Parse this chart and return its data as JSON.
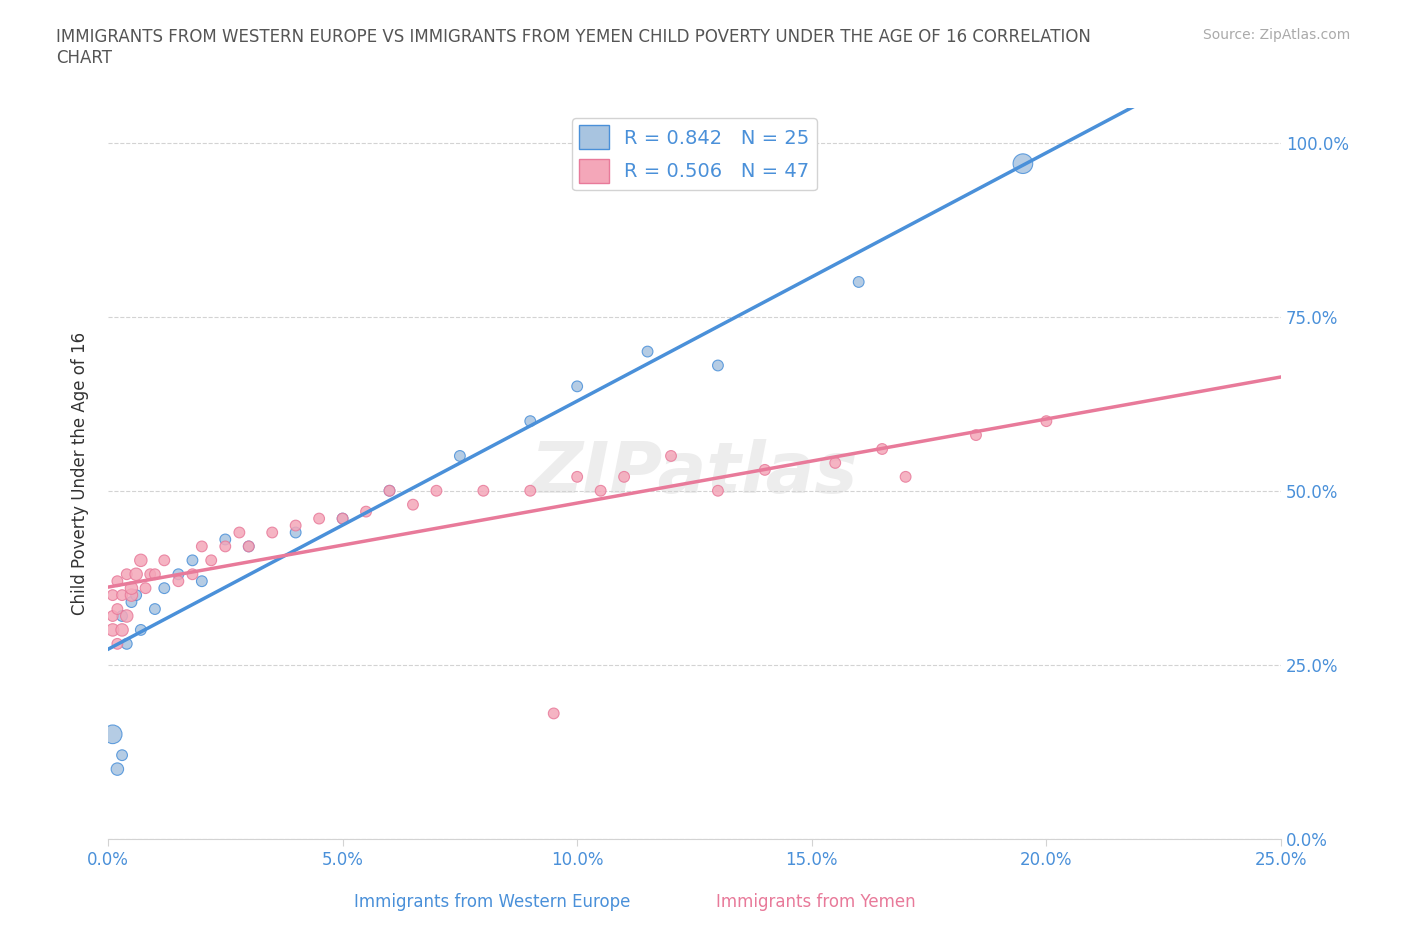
{
  "title": "IMMIGRANTS FROM WESTERN EUROPE VS IMMIGRANTS FROM YEMEN CHILD POVERTY UNDER THE AGE OF 16 CORRELATION\nCHART",
  "source": "Source: ZipAtlas.com",
  "xlabel_bottom": "Immigrants from Western Europe",
  "xlabel_bottom2": "Immigrants from Yemen",
  "ylabel": "Child Poverty Under the Age of 16",
  "xlim": [
    0,
    0.25
  ],
  "ylim": [
    0,
    1.05
  ],
  "xticks": [
    0.0,
    0.05,
    0.1,
    0.15,
    0.2,
    0.25
  ],
  "yticks": [
    0.0,
    0.25,
    0.5,
    0.75,
    1.0
  ],
  "blue_R": 0.842,
  "blue_N": 25,
  "pink_R": 0.506,
  "pink_N": 47,
  "blue_color": "#a8c4e0",
  "pink_color": "#f4a7b9",
  "blue_line_color": "#4a90d9",
  "pink_line_color": "#e87a9a",
  "watermark": "ZIPatlas",
  "blue_points_x": [
    0.001,
    0.002,
    0.003,
    0.003,
    0.004,
    0.005,
    0.006,
    0.007,
    0.01,
    0.012,
    0.015,
    0.018,
    0.02,
    0.025,
    0.03,
    0.04,
    0.05,
    0.06,
    0.075,
    0.09,
    0.1,
    0.115,
    0.13,
    0.16,
    0.195
  ],
  "blue_points_y": [
    0.15,
    0.1,
    0.12,
    0.32,
    0.28,
    0.34,
    0.35,
    0.3,
    0.33,
    0.36,
    0.38,
    0.4,
    0.37,
    0.43,
    0.42,
    0.44,
    0.46,
    0.5,
    0.55,
    0.6,
    0.65,
    0.7,
    0.68,
    0.8,
    0.97
  ],
  "blue_sizes": [
    180,
    80,
    60,
    60,
    60,
    60,
    60,
    60,
    60,
    60,
    60,
    60,
    60,
    60,
    60,
    60,
    60,
    60,
    60,
    60,
    60,
    60,
    60,
    60,
    200
  ],
  "pink_points_x": [
    0.001,
    0.001,
    0.001,
    0.002,
    0.002,
    0.002,
    0.003,
    0.003,
    0.004,
    0.004,
    0.005,
    0.005,
    0.006,
    0.007,
    0.008,
    0.009,
    0.01,
    0.012,
    0.015,
    0.018,
    0.02,
    0.022,
    0.025,
    0.028,
    0.03,
    0.035,
    0.04,
    0.045,
    0.05,
    0.055,
    0.06,
    0.065,
    0.07,
    0.08,
    0.09,
    0.095,
    0.1,
    0.105,
    0.11,
    0.12,
    0.13,
    0.14,
    0.155,
    0.165,
    0.17,
    0.185,
    0.2
  ],
  "pink_points_y": [
    0.3,
    0.32,
    0.35,
    0.28,
    0.33,
    0.37,
    0.3,
    0.35,
    0.32,
    0.38,
    0.35,
    0.36,
    0.38,
    0.4,
    0.36,
    0.38,
    0.38,
    0.4,
    0.37,
    0.38,
    0.42,
    0.4,
    0.42,
    0.44,
    0.42,
    0.44,
    0.45,
    0.46,
    0.46,
    0.47,
    0.5,
    0.48,
    0.5,
    0.5,
    0.5,
    0.18,
    0.52,
    0.5,
    0.52,
    0.55,
    0.5,
    0.53,
    0.54,
    0.56,
    0.52,
    0.58,
    0.6
  ],
  "pink_sizes": [
    80,
    60,
    60,
    60,
    60,
    60,
    80,
    60,
    80,
    60,
    80,
    80,
    80,
    80,
    60,
    60,
    60,
    60,
    60,
    60,
    60,
    60,
    60,
    60,
    60,
    60,
    60,
    60,
    60,
    60,
    60,
    60,
    60,
    60,
    60,
    60,
    60,
    60,
    60,
    60,
    60,
    60,
    60,
    60,
    60,
    60,
    60
  ]
}
